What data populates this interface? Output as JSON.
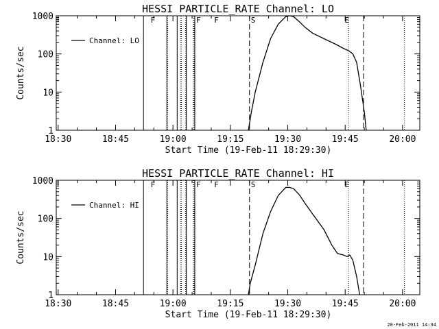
{
  "footer": {
    "timestamp": "20-Feb-2011 14:34"
  },
  "chart_data": [
    {
      "type": "line",
      "title": "HESSI PARTICLE_RATE Channel: LO",
      "xlabel": "Start Time (19-Feb-11 18:29:30)",
      "ylabel": "Counts/sec",
      "x_unit": "minutes after 18:29:30",
      "xlim": [
        0,
        95
      ],
      "ylim": [
        1,
        1000
      ],
      "y_scale": "log",
      "x_ticks": [
        {
          "x": 0.5,
          "label": "18:30"
        },
        {
          "x": 15.5,
          "label": "18:45"
        },
        {
          "x": 30.5,
          "label": "19:00"
        },
        {
          "x": 45.5,
          "label": "19:15"
        },
        {
          "x": 60.5,
          "label": "19:30"
        },
        {
          "x": 75.5,
          "label": "19:45"
        },
        {
          "x": 90.5,
          "label": "20:00"
        }
      ],
      "y_ticks": [
        {
          "y": 1,
          "label": "1"
        },
        {
          "y": 10,
          "label": "10"
        },
        {
          "y": 100,
          "label": "100"
        },
        {
          "y": 1000,
          "label": "1000"
        }
      ],
      "legend": {
        "label": "Channel: LO",
        "position": "top-left"
      },
      "markers": {
        "dotted": [
          29.1,
          32.5,
          32.7,
          33.8,
          34.0,
          35.8,
          36.0,
          76.4,
          91.0
        ],
        "solid": [
          22.8,
          28.9,
          31.6,
          34.0,
          36.2
        ],
        "dashed": [
          50.5,
          80.3
        ],
        "flags": [
          {
            "x": 24.3,
            "label": "F"
          },
          {
            "x": 36.2,
            "label": "F"
          },
          {
            "x": 40.9,
            "label": "F"
          },
          {
            "x": 50.5,
            "label": "S"
          },
          {
            "x": 75.0,
            "label": "E"
          }
        ]
      },
      "series": [
        {
          "x": [
            50.2,
            51,
            52,
            54,
            56,
            58,
            60,
            61,
            62,
            63.5,
            65,
            67,
            70,
            73,
            75,
            76.5,
            77.5,
            78.5,
            79.5,
            80.5,
            81
          ],
          "y": [
            1,
            3,
            10,
            60,
            250,
            600,
            950,
            1000,
            950,
            700,
            500,
            350,
            250,
            180,
            140,
            120,
            100,
            60,
            15,
            3,
            1
          ]
        }
      ]
    },
    {
      "type": "line",
      "title": "HESSI PARTICLE_RATE Channel: HI",
      "xlabel": "Start Time (19-Feb-11 18:29:30)",
      "ylabel": "Counts/sec",
      "x_unit": "minutes after 18:29:30",
      "xlim": [
        0,
        95
      ],
      "ylim": [
        1,
        1000
      ],
      "y_scale": "log",
      "x_ticks": [
        {
          "x": 0.5,
          "label": "18:30"
        },
        {
          "x": 15.5,
          "label": "18:45"
        },
        {
          "x": 30.5,
          "label": "19:00"
        },
        {
          "x": 45.5,
          "label": "19:15"
        },
        {
          "x": 60.5,
          "label": "19:30"
        },
        {
          "x": 75.5,
          "label": "19:45"
        },
        {
          "x": 90.5,
          "label": "20:00"
        }
      ],
      "y_ticks": [
        {
          "y": 1,
          "label": "1"
        },
        {
          "y": 10,
          "label": "10"
        },
        {
          "y": 100,
          "label": "100"
        },
        {
          "y": 1000,
          "label": "1000"
        }
      ],
      "legend": {
        "label": "Channel: HI",
        "position": "top-left"
      },
      "markers": {
        "dotted": [
          29.1,
          32.5,
          32.7,
          33.8,
          34.0,
          35.8,
          36.0,
          76.4,
          91.0
        ],
        "solid": [
          22.8,
          28.9,
          31.6,
          34.0,
          36.2
        ],
        "dashed": [
          50.5,
          80.3
        ],
        "flags": [
          {
            "x": 24.3,
            "label": "F"
          },
          {
            "x": 36.2,
            "label": "F"
          },
          {
            "x": 40.9,
            "label": "F"
          },
          {
            "x": 50.5,
            "label": "S"
          },
          {
            "x": 75.0,
            "label": "E"
          }
        ]
      },
      "series": [
        {
          "x": [
            50.2,
            50.7,
            52,
            54,
            56,
            58,
            60,
            61,
            62,
            63.5,
            65,
            67,
            70,
            72,
            73.5,
            75,
            76,
            76.7,
            77.5,
            78.5,
            79,
            79.3
          ],
          "y": [
            1,
            2,
            6,
            40,
            150,
            400,
            650,
            650,
            600,
            420,
            250,
            130,
            50,
            20,
            12,
            11,
            10,
            11,
            8,
            3,
            1.5,
            1
          ]
        }
      ]
    }
  ]
}
